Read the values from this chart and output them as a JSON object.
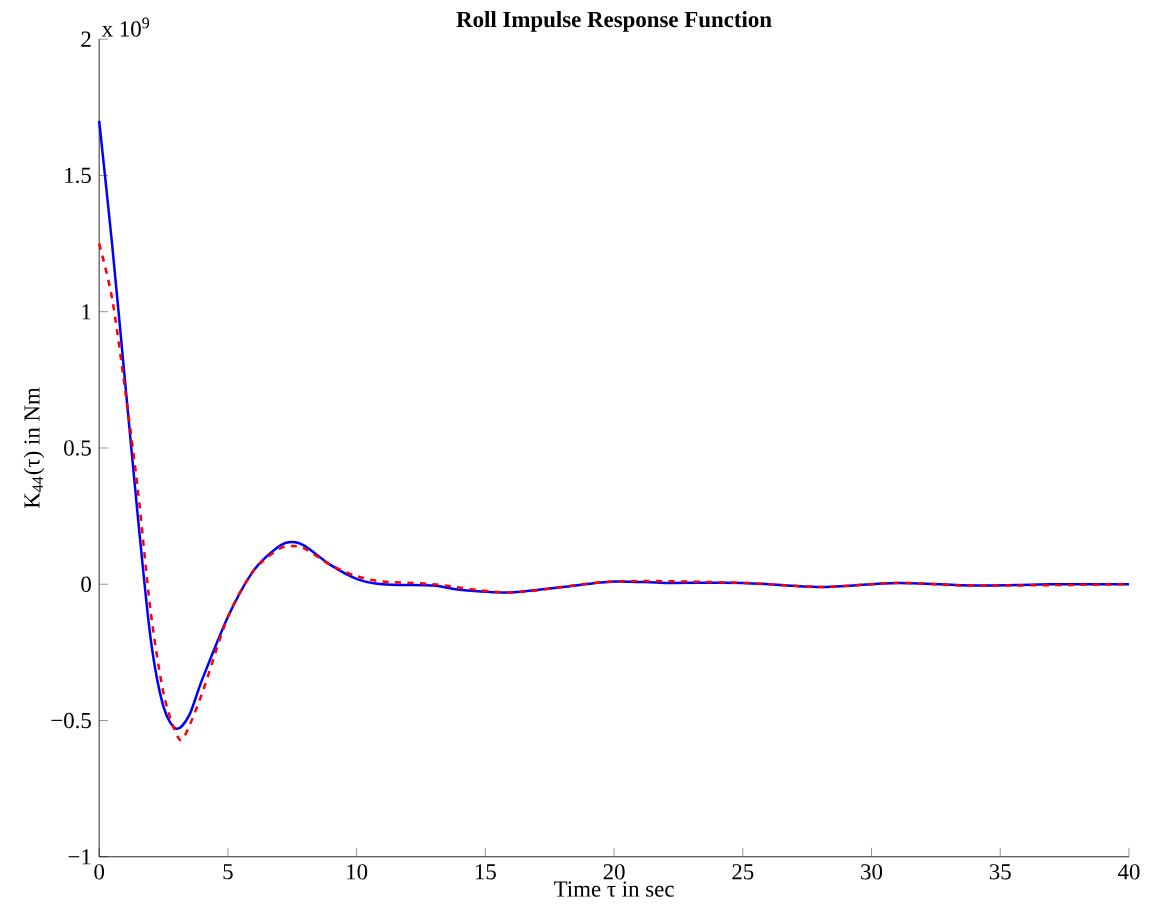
{
  "chart_data": {
    "type": "line",
    "title": "Roll Impulse Response Function",
    "xlabel": "Time τ in sec",
    "ylabel": "K$_{44}$(τ) in Nm",
    "annotations": [
      "x 10$^{9}$"
    ],
    "xlim": [
      0,
      40
    ],
    "ylim": [
      -1,
      2
    ],
    "xticks": [
      0,
      5,
      10,
      15,
      20,
      25,
      30,
      35,
      40
    ],
    "yticks": [
      {
        "value": -1,
        "label": "−1"
      },
      {
        "value": -0.5,
        "label": "−0.5"
      },
      0,
      0.5,
      1,
      1.5,
      2
    ],
    "grid": false,
    "series": [
      {
        "color": "#0000ff",
        "line_style": "solid",
        "x": [
          0,
          0.5,
          1,
          1.5,
          2,
          2.5,
          3,
          3.5,
          4,
          5,
          6,
          7,
          7.5,
          8,
          9,
          10,
          11,
          13,
          14,
          16,
          18,
          20,
          22,
          25,
          28,
          31,
          34,
          37,
          40
        ],
        "values": [
          1.7,
          1.25,
          0.75,
          0.25,
          -0.2,
          -0.45,
          -0.53,
          -0.48,
          -0.35,
          -0.12,
          0.05,
          0.14,
          0.155,
          0.14,
          0.07,
          0.02,
          0.0,
          -0.005,
          -0.02,
          -0.03,
          -0.01,
          0.01,
          0.005,
          0.005,
          -0.01,
          0.005,
          -0.005,
          0.0,
          0.0
        ]
      },
      {
        "color": "#ff0000",
        "line_style": "dashed",
        "x": [
          0,
          0.5,
          1,
          1.5,
          2,
          2.5,
          3,
          3.3,
          4,
          5,
          6,
          7,
          7.5,
          8,
          9,
          10,
          11,
          13,
          16,
          20,
          25,
          28,
          31,
          34,
          40
        ],
        "values": [
          1.25,
          1.05,
          0.72,
          0.35,
          -0.1,
          -0.4,
          -0.55,
          -0.56,
          -0.4,
          -0.12,
          0.05,
          0.13,
          0.14,
          0.13,
          0.07,
          0.03,
          0.01,
          0.0,
          -0.03,
          0.01,
          0.005,
          -0.01,
          0.005,
          -0.005,
          0.0
        ]
      }
    ]
  }
}
